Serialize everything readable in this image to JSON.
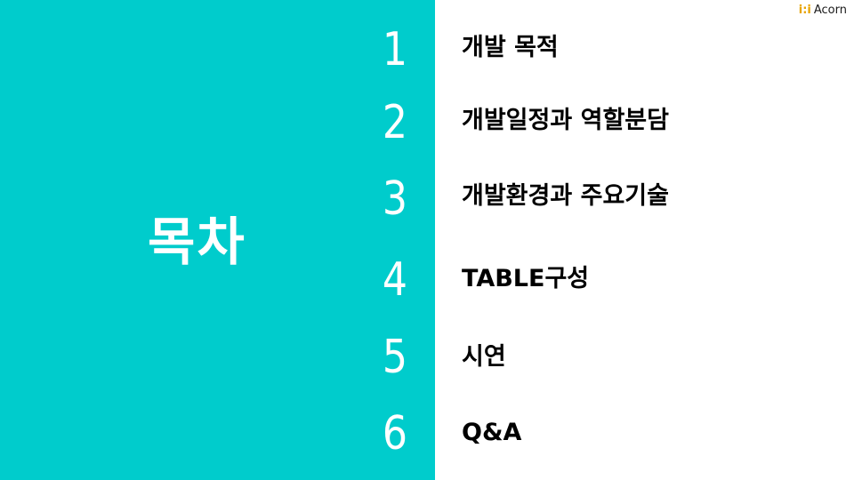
{
  "slide": {
    "title": "목차",
    "logo_mark": "i:i",
    "logo_text": "Acorn",
    "accent_color": "#00cccc",
    "items": [
      {
        "number": "1",
        "label": "개발 목적"
      },
      {
        "number": "2",
        "label": "개발일정과 역할분담"
      },
      {
        "number": "3",
        "label": "개발환경과 주요기술"
      },
      {
        "number": "4",
        "label": "TABLE구성"
      },
      {
        "number": "5",
        "label": "시연"
      },
      {
        "number": "6",
        "label": "Q&A"
      }
    ]
  }
}
